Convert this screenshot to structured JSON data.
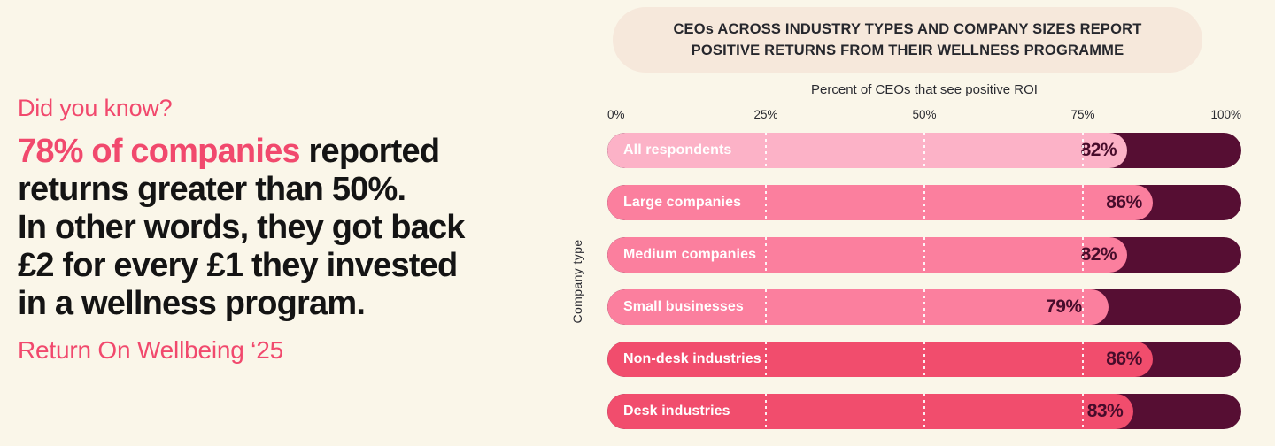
{
  "colors": {
    "background": "#FAF6E9",
    "accent_pink": "#F1496D",
    "headline_text": "#141414",
    "title_pill_bg": "#F6E8DB",
    "title_text": "#26272D",
    "bar_track": "#560E33",
    "value_text": "#470C2B",
    "bar_label_text": "#FFFFFF"
  },
  "left_panel": {
    "eyebrow": "Did you know?",
    "headline": {
      "highlight": "78% of companies",
      "after_highlight": " reported",
      "line2": "returns greater than 50%.",
      "line3": "In other words, they got back",
      "line4": "£2 for every £1 they invested",
      "line5": "in a wellness program."
    },
    "source": "Return On Wellbeing ‘25"
  },
  "chart_data": {
    "type": "bar",
    "orientation": "horizontal",
    "title": "CEOs ACROSS INDUSTRY TYPES AND COMPANY SIZES REPORT POSITIVE RETURNS FROM THEIR WELLNESS PROGRAMME",
    "title_line1": "CEOs ACROSS INDUSTRY TYPES AND COMPANY SIZES REPORT",
    "title_line2": "POSITIVE RETURNS FROM THEIR WELLNESS PROGRAMME",
    "subtitle": "Percent of CEOs that see positive ROI",
    "ylabel": "Company type",
    "xlabel": "",
    "xlim": [
      0,
      100
    ],
    "x_ticks": [
      "0%",
      "25%",
      "50%",
      "75%",
      "100%"
    ],
    "gridlines_pct": [
      25,
      50,
      75
    ],
    "legend": "none",
    "categories": [
      "All respondents",
      "Large companies",
      "Medium companies",
      "Small businesses",
      "Non-desk industries",
      "Desk industries"
    ],
    "values": [
      82,
      86,
      82,
      79,
      86,
      83
    ],
    "value_labels": [
      "82%",
      "86%",
      "82%",
      "79%",
      "86%",
      "83%"
    ],
    "bar_colors": [
      "#FCB2C7",
      "#FB7F9E",
      "#FB7F9E",
      "#FB7F9E",
      "#F14D6D",
      "#F14D6D"
    ],
    "track_color": "#560E33"
  }
}
